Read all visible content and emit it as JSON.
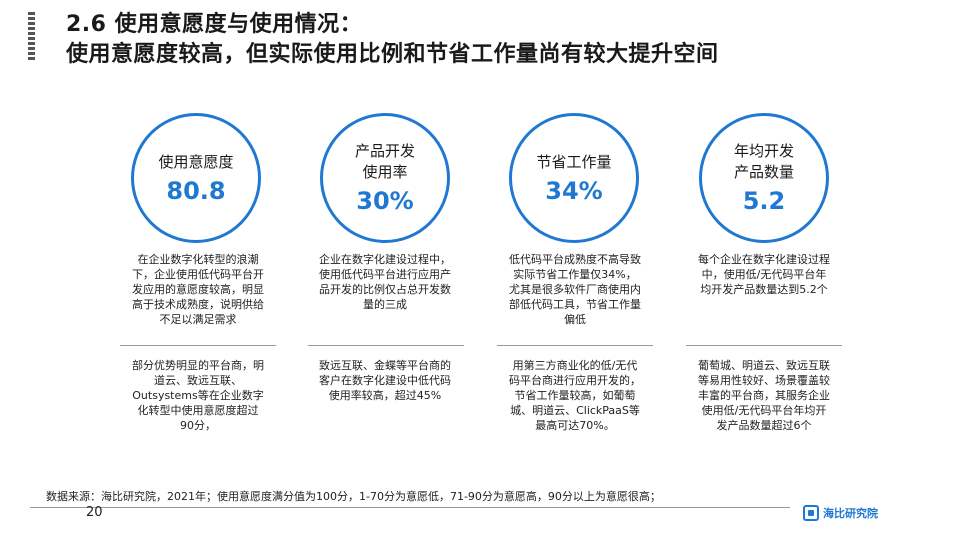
{
  "header": {
    "title_line1": "2.6 使用意愿度与使用情况：",
    "title_line2": "使用意愿度较高，但实际使用比例和节省工作量尚有较大提升空间"
  },
  "metrics": [
    {
      "label": "使用意愿度",
      "value": "80.8",
      "desc1": "在企业数字化转型的浪潮下，企业使用低代码平台开发应用的意愿度较高，明显高于技术成熟度，说明供给不足以满足需求",
      "desc2": "部分优势明显的平台商，明道云、致远互联、Outsystems等在企业数字化转型中使用意愿度超过90分，"
    },
    {
      "label": "产品开发\n使用率",
      "value": "30%",
      "desc1": "企业在数字化建设过程中，使用低代码平台进行应用产品开发的比例仅占总开发数量的三成",
      "desc2": "致远互联、金蝶等平台商的客户在数字化建设中低代码使用率较高，超过45%"
    },
    {
      "label": "节省工作量",
      "value": "34%",
      "desc1": "低代码平台成熟度不高导致实际节省工作量仅34%，尤其是很多软件厂商使用内部低代码工具，节省工作量偏低",
      "desc2": "用第三方商业化的低/无代码平台商进行应用开发的，节省工作量较高，如葡萄城、明道云、ClickPaaS等最高可达70%。"
    },
    {
      "label": "年均开发\n产品数量",
      "value": "5.2",
      "desc1": "每个企业在数字化建设过程中，使用低/无代码平台年均开发产品数量达到5.2个",
      "desc2": "葡萄城、明道云、致远互联等易用性较好、场景覆盖较丰富的平台商，其服务企业使用低/无代码平台年均开发产品数量超过6个"
    }
  ],
  "footer": {
    "source": "数据来源：海比研究院，2021年；使用意愿度满分值为100分，1-70分为意愿低，71-90分为意愿高，90分以上为意愿很高；",
    "page_number": "20",
    "logo_text": "海比研究院"
  },
  "colors": {
    "accent": "#1f78d1"
  }
}
